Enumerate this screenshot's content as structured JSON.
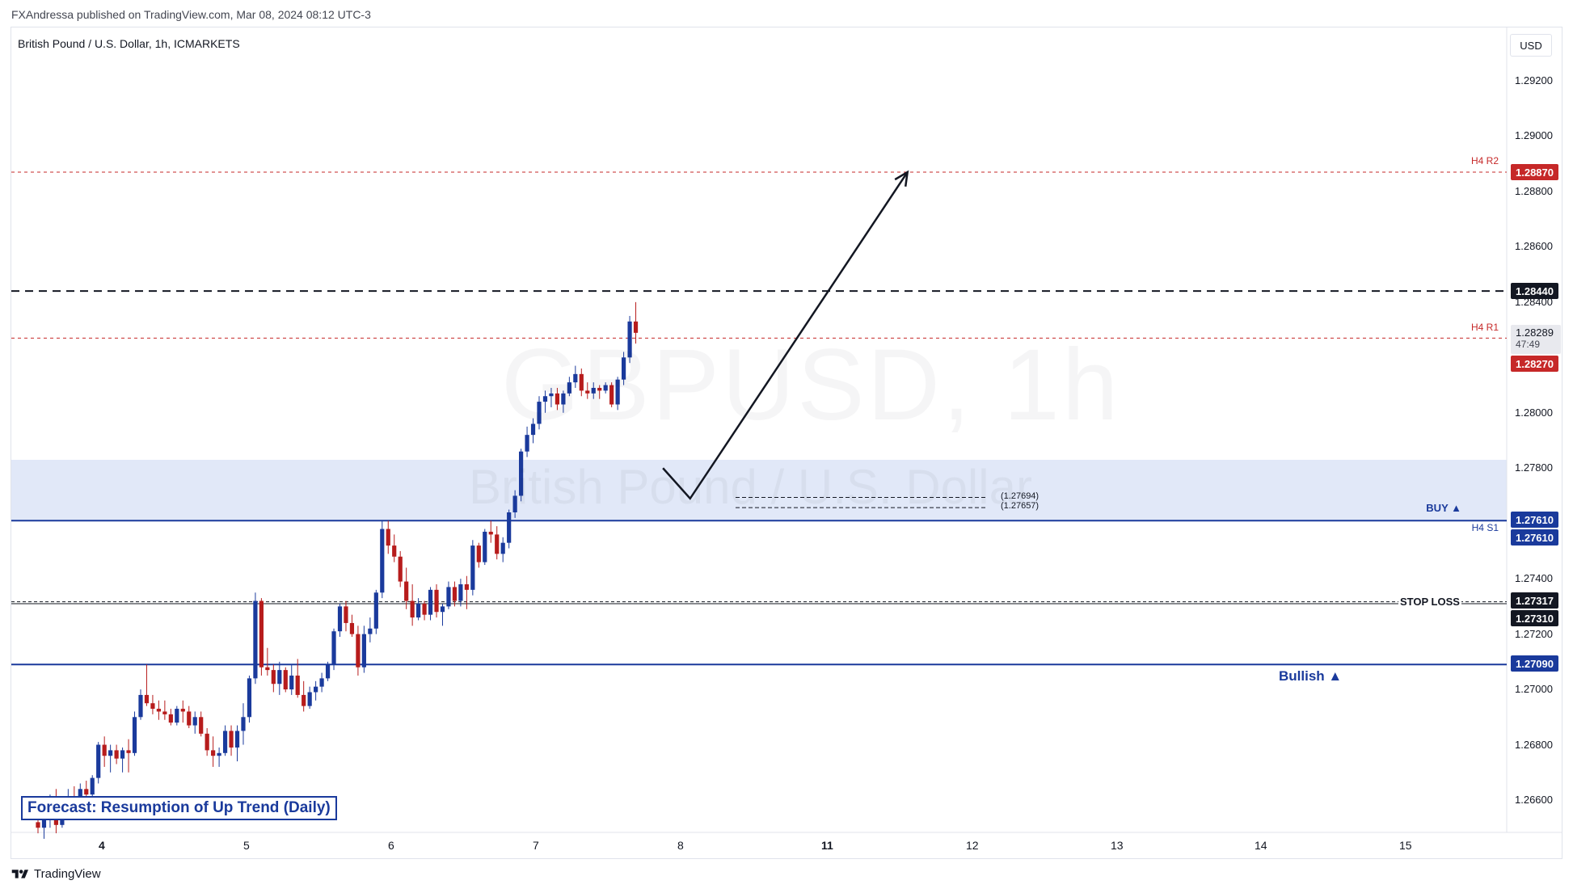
{
  "header": {
    "published": "FXAndressa published on TradingView.com, Mar 08, 2024 08:12 UTC-3",
    "symbol": "British Pound / U.S. Dollar, 1h, ICMARKETS",
    "currency": "USD",
    "watermark_symbol": "GBPUSD, 1h",
    "watermark_name": "British Pound / U.S. Dollar"
  },
  "price_axis": {
    "ticks": [
      "1.29200",
      "1.29000",
      "1.28800",
      "1.28600",
      "1.28400",
      "1.28000",
      "1.27800",
      "1.27400",
      "1.27200",
      "1.27000",
      "1.26800",
      "1.26600"
    ],
    "last_price": "1.28289",
    "countdown": "47:49"
  },
  "time_axis": {
    "labels": [
      "4",
      "5",
      "6",
      "7",
      "8",
      "11",
      "12",
      "13",
      "14",
      "15"
    ]
  },
  "levels": {
    "h4_r2": {
      "label": "H4 R2",
      "value": "1.28870",
      "color": "#c62828"
    },
    "target": {
      "value": "1.28440",
      "color": "#131722"
    },
    "h4_r1": {
      "label": "H4 R1",
      "value": "1.28270",
      "color": "#c62828"
    },
    "buy": {
      "label": "BUY ▲",
      "value": "1.27610",
      "color": "#1a3a9c"
    },
    "h4_s1": {
      "label": "H4 S1",
      "value": "1.27610",
      "color": "#1a3a9c"
    },
    "stop_loss": {
      "label": "STOP LOSS",
      "value": "1.27317",
      "color": "#131722"
    },
    "stop_line": {
      "value": "1.27310",
      "color": "#131722"
    },
    "bullish": {
      "label": "Bullish ▲",
      "value": "1.27090",
      "color": "#1a3a9c"
    }
  },
  "entry_brackets": {
    "upper": "(1.27694)",
    "lower": "(1.27657)"
  },
  "forecast": "Forecast: Resumption of Up Trend (Daily)",
  "colors": {
    "up": "#1a3a9c",
    "down": "#b71c1c",
    "zone": "#dce4f7"
  },
  "footer": {
    "brand": "TradingView"
  },
  "chart_data": {
    "type": "candlestick",
    "symbol": "GBPUSD",
    "interval": "1h",
    "candles_ohlc": [
      [
        1.2652,
        1.2657,
        1.2648,
        1.265
      ],
      [
        1.265,
        1.2656,
        1.2646,
        1.2654
      ],
      [
        1.2654,
        1.2662,
        1.265,
        1.266
      ],
      [
        1.266,
        1.2664,
        1.2648,
        1.2651
      ],
      [
        1.2651,
        1.2659,
        1.265,
        1.2657
      ],
      [
        1.2657,
        1.2664,
        1.2656,
        1.2661
      ],
      [
        1.2661,
        1.2665,
        1.2658,
        1.2659
      ],
      [
        1.2659,
        1.2666,
        1.2656,
        1.2664
      ],
      [
        1.2664,
        1.2667,
        1.2661,
        1.2662
      ],
      [
        1.2662,
        1.2669,
        1.266,
        1.2668
      ],
      [
        1.2668,
        1.2681,
        1.2666,
        1.268
      ],
      [
        1.268,
        1.2683,
        1.2672,
        1.2676
      ],
      [
        1.2676,
        1.268,
        1.267,
        1.2678
      ],
      [
        1.2678,
        1.268,
        1.2673,
        1.2675
      ],
      [
        1.2675,
        1.2679,
        1.267,
        1.2678
      ],
      [
        1.2678,
        1.2682,
        1.267,
        1.2677
      ],
      [
        1.2677,
        1.2692,
        1.2676,
        1.269
      ],
      [
        1.269,
        1.27,
        1.2689,
        1.2698
      ],
      [
        1.2698,
        1.2709,
        1.2694,
        1.2695
      ],
      [
        1.2695,
        1.2698,
        1.2691,
        1.2693
      ],
      [
        1.2693,
        1.2696,
        1.2689,
        1.2692
      ],
      [
        1.2692,
        1.2696,
        1.2689,
        1.2691
      ],
      [
        1.2691,
        1.2693,
        1.2687,
        1.2688
      ],
      [
        1.2688,
        1.2694,
        1.2687,
        1.2693
      ],
      [
        1.2693,
        1.2696,
        1.2688,
        1.2692
      ],
      [
        1.2692,
        1.2694,
        1.2686,
        1.2687
      ],
      [
        1.2687,
        1.2692,
        1.2684,
        1.269
      ],
      [
        1.269,
        1.2692,
        1.2683,
        1.2684
      ],
      [
        1.2684,
        1.2686,
        1.2676,
        1.2678
      ],
      [
        1.2678,
        1.2683,
        1.2672,
        1.2676
      ],
      [
        1.2676,
        1.2679,
        1.2672,
        1.2677
      ],
      [
        1.2677,
        1.2687,
        1.2676,
        1.2685
      ],
      [
        1.2685,
        1.2687,
        1.2676,
        1.2679
      ],
      [
        1.2679,
        1.2687,
        1.2674,
        1.2685
      ],
      [
        1.2685,
        1.2695,
        1.268,
        1.269
      ],
      [
        1.269,
        1.2705,
        1.2688,
        1.2704
      ],
      [
        1.2704,
        1.2735,
        1.2702,
        1.2732
      ],
      [
        1.2732,
        1.2733,
        1.2705,
        1.2708
      ],
      [
        1.2708,
        1.2715,
        1.2705,
        1.2707
      ],
      [
        1.2707,
        1.2709,
        1.2699,
        1.2702
      ],
      [
        1.2702,
        1.271,
        1.2698,
        1.2707
      ],
      [
        1.2707,
        1.2708,
        1.2699,
        1.27
      ],
      [
        1.27,
        1.2709,
        1.2698,
        1.2705
      ],
      [
        1.2705,
        1.2711,
        1.2697,
        1.2698
      ],
      [
        1.2698,
        1.2703,
        1.2692,
        1.2694
      ],
      [
        1.2694,
        1.2701,
        1.2693,
        1.2699
      ],
      [
        1.2699,
        1.2703,
        1.2696,
        1.2701
      ],
      [
        1.2701,
        1.2706,
        1.2699,
        1.2704
      ],
      [
        1.2704,
        1.271,
        1.2703,
        1.2709
      ],
      [
        1.2709,
        1.2722,
        1.2707,
        1.2721
      ],
      [
        1.2721,
        1.2731,
        1.2719,
        1.273
      ],
      [
        1.273,
        1.2732,
        1.2721,
        1.2724
      ],
      [
        1.2724,
        1.2727,
        1.2719,
        1.272
      ],
      [
        1.272,
        1.2723,
        1.2705,
        1.2708
      ],
      [
        1.2708,
        1.2723,
        1.2706,
        1.272
      ],
      [
        1.272,
        1.2726,
        1.2717,
        1.2722
      ],
      [
        1.2722,
        1.2736,
        1.272,
        1.2735
      ],
      [
        1.2735,
        1.2761,
        1.2733,
        1.2758
      ],
      [
        1.2758,
        1.2761,
        1.2749,
        1.2752
      ],
      [
        1.2752,
        1.2756,
        1.2746,
        1.2748
      ],
      [
        1.2748,
        1.275,
        1.2737,
        1.2739
      ],
      [
        1.2739,
        1.2744,
        1.2729,
        1.2732
      ],
      [
        1.2732,
        1.2738,
        1.2723,
        1.2726
      ],
      [
        1.2726,
        1.2733,
        1.2725,
        1.2731
      ],
      [
        1.2731,
        1.2732,
        1.2725,
        1.2727
      ],
      [
        1.2727,
        1.2737,
        1.2725,
        1.2736
      ],
      [
        1.2736,
        1.2738,
        1.2726,
        1.2728
      ],
      [
        1.2728,
        1.2731,
        1.2723,
        1.273
      ],
      [
        1.273,
        1.2739,
        1.2729,
        1.2737
      ],
      [
        1.2737,
        1.2739,
        1.273,
        1.2732
      ],
      [
        1.2732,
        1.274,
        1.273,
        1.2738
      ],
      [
        1.2738,
        1.2741,
        1.2729,
        1.2736
      ],
      [
        1.2736,
        1.2754,
        1.2734,
        1.2752
      ],
      [
        1.2752,
        1.2753,
        1.2744,
        1.2746
      ],
      [
        1.2746,
        1.2758,
        1.2745,
        1.2757
      ],
      [
        1.2757,
        1.2761,
        1.2753,
        1.2756
      ],
      [
        1.2756,
        1.2759,
        1.2747,
        1.2749
      ],
      [
        1.2749,
        1.2755,
        1.2746,
        1.2753
      ],
      [
        1.2753,
        1.2765,
        1.2751,
        1.2764
      ],
      [
        1.2764,
        1.2772,
        1.2762,
        1.277
      ],
      [
        1.277,
        1.2787,
        1.2768,
        1.2786
      ],
      [
        1.2786,
        1.2795,
        1.2784,
        1.2792
      ],
      [
        1.2792,
        1.2798,
        1.2789,
        1.2796
      ],
      [
        1.2796,
        1.2806,
        1.2794,
        1.2804
      ],
      [
        1.2804,
        1.2808,
        1.28,
        1.2806
      ],
      [
        1.2806,
        1.2809,
        1.2802,
        1.2807
      ],
      [
        1.2807,
        1.2809,
        1.2801,
        1.2803
      ],
      [
        1.2803,
        1.2808,
        1.28,
        1.2807
      ],
      [
        1.2807,
        1.2813,
        1.2806,
        1.2811
      ],
      [
        1.2811,
        1.2817,
        1.2809,
        1.2814
      ],
      [
        1.2814,
        1.2816,
        1.2806,
        1.2808
      ],
      [
        1.2808,
        1.2811,
        1.2805,
        1.2807
      ],
      [
        1.2807,
        1.2811,
        1.2805,
        1.2809
      ],
      [
        1.2809,
        1.281,
        1.2805,
        1.2808
      ],
      [
        1.2808,
        1.2811,
        1.2807,
        1.281
      ],
      [
        1.281,
        1.2811,
        1.2802,
        1.2803
      ],
      [
        1.2803,
        1.2813,
        1.2801,
        1.2812
      ],
      [
        1.2812,
        1.2822,
        1.281,
        1.282
      ],
      [
        1.282,
        1.2835,
        1.2818,
        1.2833
      ],
      [
        1.2833,
        1.284,
        1.2825,
        1.28289
      ]
    ],
    "projection_path": [
      {
        "label": "start",
        "time_index": 103.5,
        "price": 1.278
      },
      {
        "label": "pullback",
        "time_index": 108,
        "price": 1.2769
      },
      {
        "label": "target",
        "time_index": 144,
        "price": 1.2887
      }
    ],
    "buy_zone": {
      "from": 1.2761,
      "to": 1.2783
    },
    "ylim": [
      1.2654,
      1.2935
    ]
  }
}
